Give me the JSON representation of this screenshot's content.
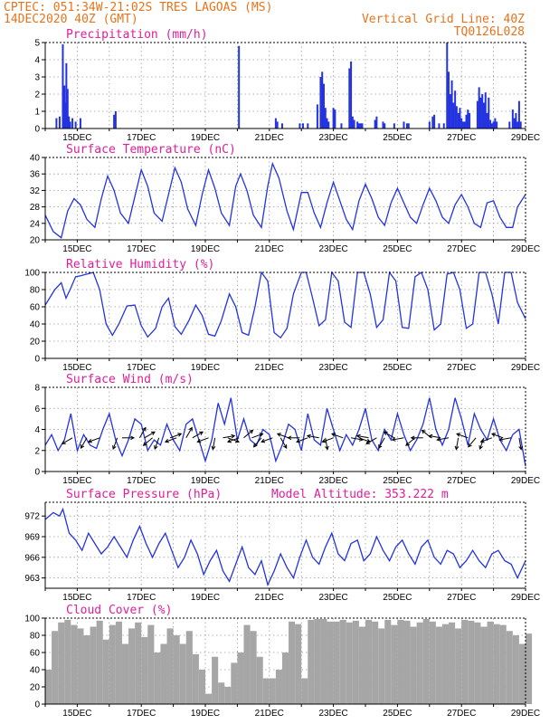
{
  "header": {
    "line1_left": "CPTEC:  051:34W-21:02S  TRES LAGOAS (MS)",
    "line2_left": "14DEC2020 40Z (GMT)",
    "line1_right": "Vertical Grid Line: 40Z",
    "line2_right": "TQ0126L028"
  },
  "x_axis": {
    "start_day": 14,
    "end_day": 29,
    "tick_labels": [
      "15DEC",
      "17DEC",
      "19DEC",
      "21DEC",
      "23DEC",
      "25DEC",
      "27DEC",
      "29DEC"
    ],
    "tick_days": [
      15,
      17,
      19,
      21,
      23,
      25,
      27,
      29
    ]
  },
  "colors": {
    "line": "#2433e0",
    "bar": "#2433e0",
    "cloud": "#a6a6a6",
    "arrow": "#000000",
    "header": "#e8731a",
    "title": "#e01e9a"
  },
  "chart_data": [
    {
      "type": "bar",
      "title": "Precipitation (mm/h)",
      "ylim": [
        0,
        5
      ],
      "yticks": [
        0,
        1,
        2,
        3,
        4,
        5
      ],
      "x": [
        14.35,
        14.45,
        14.55,
        14.6,
        14.62,
        14.66,
        14.7,
        14.74,
        14.78,
        14.85,
        14.95,
        15.1,
        16.15,
        16.2,
        20.05,
        21.2,
        21.25,
        21.4,
        21.95,
        22.05,
        22.2,
        22.5,
        22.6,
        22.65,
        22.7,
        22.75,
        22.8,
        22.85,
        23.0,
        23.05,
        23.25,
        23.5,
        23.55,
        23.6,
        23.65,
        23.75,
        23.8,
        23.85,
        23.9,
        24.3,
        24.35,
        24.55,
        24.6,
        24.9,
        25.2,
        25.3,
        25.35,
        26.0,
        26.1,
        26.15,
        26.3,
        26.45,
        26.55,
        26.6,
        26.65,
        26.7,
        26.75,
        26.8,
        26.85,
        26.9,
        26.95,
        27.0,
        27.05,
        27.1,
        27.15,
        27.2,
        27.25,
        27.5,
        27.55,
        27.6,
        27.65,
        27.7,
        27.75,
        27.8,
        27.85,
        27.9,
        27.95,
        28.0,
        28.05,
        28.1,
        28.5,
        28.6,
        28.65,
        28.7,
        28.75,
        28.8,
        28.85
      ],
      "values": [
        0.6,
        0.7,
        4.9,
        2.5,
        1.5,
        3.8,
        2.3,
        0.7,
        0.4,
        0.6,
        0.4,
        0.6,
        0.8,
        1.0,
        4.8,
        0.6,
        0.4,
        0.3,
        0.3,
        0.3,
        0.3,
        1.4,
        3.0,
        3.3,
        2.6,
        1.2,
        0.6,
        0.4,
        1.2,
        1.1,
        0.3,
        3.5,
        3.9,
        0.7,
        0.5,
        0.4,
        0.3,
        0.3,
        0.3,
        0.5,
        0.7,
        0.4,
        0.3,
        0.3,
        0.4,
        0.3,
        0.3,
        0.4,
        0.7,
        0.8,
        0.3,
        0.3,
        5.0,
        3.3,
        2.0,
        2.8,
        1.5,
        2.2,
        1.3,
        0.9,
        1.2,
        0.6,
        0.4,
        0.4,
        0.8,
        1.1,
        0.9,
        1.6,
        2.4,
        1.8,
        2.0,
        1.5,
        2.1,
        0.9,
        1.8,
        0.5,
        0.3,
        0.4,
        0.6,
        0.4,
        0.4,
        1.1,
        0.6,
        0.9,
        0.4,
        1.6,
        0.4
      ]
    },
    {
      "type": "line",
      "title": "Surface Temperature (nC)",
      "ylim": [
        20,
        40
      ],
      "yticks": [
        20,
        24,
        28,
        32,
        36,
        40
      ],
      "x": [
        14.0,
        14.25,
        14.5,
        14.7,
        14.9,
        15.1,
        15.3,
        15.55,
        15.75,
        15.95,
        16.15,
        16.35,
        16.6,
        16.8,
        17.0,
        17.2,
        17.4,
        17.65,
        17.85,
        18.05,
        18.25,
        18.45,
        18.7,
        18.9,
        19.1,
        19.3,
        19.5,
        19.75,
        19.95,
        20.1,
        20.3,
        20.5,
        20.75,
        20.95,
        21.1,
        21.3,
        21.55,
        21.75,
        22.0,
        22.2,
        22.4,
        22.6,
        22.8,
        23.0,
        23.2,
        23.4,
        23.6,
        23.8,
        24.0,
        24.2,
        24.4,
        24.6,
        24.8,
        25.0,
        25.2,
        25.4,
        25.6,
        25.8,
        26.0,
        26.2,
        26.4,
        26.6,
        26.8,
        27.0,
        27.2,
        27.4,
        27.6,
        27.8,
        28.0,
        28.2,
        28.4,
        28.6,
        28.75,
        29.0
      ],
      "values": [
        26.0,
        22.0,
        20.5,
        27.0,
        30.0,
        28.5,
        25.0,
        23.0,
        30.0,
        35.5,
        32.0,
        26.5,
        24.0,
        30.5,
        37.0,
        33.0,
        26.5,
        24.5,
        31.0,
        37.5,
        34.0,
        27.5,
        23.5,
        31.0,
        37.0,
        32.5,
        26.5,
        23.5,
        33.0,
        36.0,
        32.0,
        26.0,
        23.0,
        33.0,
        38.5,
        35.0,
        27.0,
        22.5,
        31.5,
        31.5,
        26.5,
        23.0,
        29.0,
        34.0,
        29.5,
        25.0,
        22.5,
        29.5,
        33.5,
        30.0,
        25.5,
        23.5,
        29.0,
        32.5,
        29.0,
        25.5,
        24.0,
        28.5,
        32.5,
        29.5,
        25.5,
        24.0,
        28.5,
        31.0,
        28.0,
        24.0,
        23.0,
        29.0,
        29.5,
        25.5,
        23.0,
        23.0,
        28.0,
        31.0
      ]
    },
    {
      "type": "line",
      "title": "Relative Humidity (%)",
      "ylim": [
        0,
        100
      ],
      "yticks": [
        0,
        20,
        40,
        60,
        80,
        100
      ],
      "x": [
        14.0,
        14.3,
        14.5,
        14.65,
        14.8,
        14.95,
        15.1,
        15.3,
        15.5,
        15.7,
        15.9,
        16.1,
        16.3,
        16.55,
        16.8,
        17.0,
        17.2,
        17.45,
        17.65,
        17.85,
        18.05,
        18.25,
        18.5,
        18.7,
        18.9,
        19.1,
        19.3,
        19.5,
        19.75,
        19.95,
        20.15,
        20.35,
        20.55,
        20.75,
        20.95,
        21.15,
        21.35,
        21.55,
        21.75,
        22.0,
        22.15,
        22.35,
        22.55,
        22.75,
        22.95,
        23.15,
        23.35,
        23.55,
        23.75,
        23.95,
        24.15,
        24.35,
        24.55,
        24.75,
        24.95,
        25.15,
        25.35,
        25.55,
        25.75,
        25.95,
        26.15,
        26.35,
        26.55,
        26.75,
        26.95,
        27.15,
        27.35,
        27.55,
        27.75,
        27.95,
        28.15,
        28.35,
        28.55,
        28.75,
        29.0
      ],
      "values": [
        62,
        80,
        88,
        70,
        82,
        95,
        96,
        98,
        100,
        80,
        40,
        27,
        40,
        61,
        62,
        38,
        25,
        35,
        60,
        70,
        37,
        28,
        45,
        62,
        50,
        28,
        26,
        44,
        75,
        60,
        30,
        27,
        60,
        100,
        90,
        30,
        24,
        35,
        75,
        100,
        100,
        70,
        38,
        45,
        100,
        90,
        42,
        36,
        100,
        100,
        75,
        36,
        45,
        100,
        90,
        36,
        35,
        95,
        100,
        80,
        33,
        40,
        98,
        100,
        80,
        35,
        40,
        100,
        100,
        75,
        40,
        100,
        100,
        65,
        46
      ]
    },
    {
      "type": "line",
      "title": "Surface Wind (m/s)",
      "ylim": [
        0,
        8
      ],
      "yticks": [
        0,
        2,
        4,
        6,
        8
      ],
      "x": [
        14.0,
        14.2,
        14.4,
        14.6,
        14.8,
        15.0,
        15.2,
        15.4,
        15.6,
        15.8,
        16.0,
        16.2,
        16.4,
        16.6,
        16.8,
        17.0,
        17.2,
        17.4,
        17.6,
        17.8,
        18.0,
        18.2,
        18.4,
        18.6,
        18.8,
        19.0,
        19.2,
        19.4,
        19.6,
        19.8,
        20.0,
        20.2,
        20.4,
        20.6,
        20.8,
        21.0,
        21.2,
        21.4,
        21.6,
        21.8,
        22.0,
        22.2,
        22.4,
        22.6,
        22.8,
        23.0,
        23.2,
        23.4,
        23.6,
        23.8,
        24.0,
        24.2,
        24.4,
        24.6,
        24.8,
        25.0,
        25.2,
        25.4,
        25.6,
        25.8,
        26.0,
        26.2,
        26.4,
        26.6,
        26.8,
        27.0,
        27.2,
        27.4,
        27.6,
        27.8,
        28.0,
        28.2,
        28.4,
        28.6,
        28.8,
        29.0
      ],
      "values": [
        2.5,
        3.5,
        2.0,
        3.0,
        5.5,
        2.0,
        3.5,
        2.5,
        2.2,
        4.0,
        5.5,
        3.0,
        1.5,
        3.0,
        5.0,
        4.5,
        2.0,
        3.0,
        2.5,
        4.5,
        3.0,
        2.0,
        4.5,
        5.0,
        3.0,
        1.0,
        3.0,
        6.5,
        4.5,
        7.0,
        3.0,
        5.0,
        3.0,
        2.5,
        4.0,
        3.5,
        1.0,
        2.5,
        4.5,
        4.0,
        2.0,
        5.5,
        3.0,
        2.5,
        6.0,
        4.0,
        2.0,
        3.5,
        2.5,
        4.0,
        6.0,
        3.0,
        2.0,
        4.0,
        3.0,
        5.5,
        3.5,
        2.0,
        3.0,
        4.5,
        7.0,
        4.0,
        2.5,
        4.0,
        7.0,
        5.0,
        2.5,
        5.5,
        4.0,
        3.0,
        5.0,
        3.0,
        2.0,
        3.5,
        4.0,
        0.5
      ]
    },
    {
      "type": "line",
      "title": "Surface Pressure (hPa)",
      "annotation": "Model Altitude: 353.222 m",
      "ylim": [
        961.5,
        974
      ],
      "yticks": [
        963,
        966,
        969,
        972
      ],
      "x": [
        14.0,
        14.25,
        14.45,
        14.55,
        14.75,
        14.95,
        15.15,
        15.35,
        15.55,
        15.75,
        15.95,
        16.15,
        16.35,
        16.55,
        16.75,
        16.95,
        17.15,
        17.35,
        17.55,
        17.75,
        17.95,
        18.15,
        18.35,
        18.55,
        18.75,
        18.95,
        19.15,
        19.35,
        19.55,
        19.75,
        19.95,
        20.15,
        20.35,
        20.55,
        20.75,
        20.95,
        21.15,
        21.35,
        21.55,
        21.75,
        21.95,
        22.15,
        22.35,
        22.55,
        22.75,
        22.95,
        23.15,
        23.35,
        23.55,
        23.75,
        23.95,
        24.15,
        24.35,
        24.55,
        24.75,
        24.95,
        25.15,
        25.35,
        25.55,
        25.75,
        25.95,
        26.15,
        26.35,
        26.55,
        26.75,
        26.95,
        27.15,
        27.35,
        27.55,
        27.75,
        27.95,
        28.15,
        28.35,
        28.55,
        28.75,
        29.0
      ],
      "values": [
        971.5,
        972.5,
        972.0,
        973.0,
        969.5,
        968.5,
        967.0,
        969.5,
        968.0,
        966.5,
        967.5,
        969.0,
        967.5,
        966.0,
        968.5,
        970.5,
        968.0,
        966.0,
        968.0,
        969.5,
        967.0,
        964.5,
        966.0,
        968.5,
        966.5,
        963.5,
        965.5,
        967.0,
        964.0,
        962.5,
        965.0,
        967.5,
        964.5,
        963.5,
        965.5,
        962.0,
        964.0,
        966.5,
        964.5,
        963.0,
        966.0,
        968.5,
        966.0,
        965.0,
        967.5,
        969.5,
        966.5,
        965.5,
        968.0,
        968.5,
        965.5,
        966.5,
        969.0,
        967.0,
        965.5,
        967.5,
        968.5,
        966.5,
        965.0,
        967.5,
        968.5,
        966.0,
        965.0,
        967.0,
        966.5,
        964.5,
        965.5,
        967.0,
        965.5,
        964.5,
        966.5,
        967.0,
        965.5,
        965.0,
        963.0,
        965.5
      ]
    },
    {
      "type": "bar",
      "title": "Cloud Cover (%)",
      "ylim": [
        0,
        100
      ],
      "yticks": [
        0,
        20,
        40,
        60,
        80,
        100
      ],
      "x": [
        14.0,
        14.2,
        14.4,
        14.6,
        14.8,
        15.0,
        15.2,
        15.4,
        15.6,
        15.8,
        16.0,
        16.2,
        16.4,
        16.6,
        16.8,
        17.0,
        17.2,
        17.4,
        17.6,
        17.8,
        18.0,
        18.2,
        18.4,
        18.6,
        18.8,
        19.0,
        19.2,
        19.4,
        19.6,
        19.8,
        20.0,
        20.2,
        20.4,
        20.6,
        20.8,
        21.0,
        21.2,
        21.4,
        21.6,
        21.8,
        22.0,
        22.2,
        22.4,
        22.6,
        22.8,
        23.0,
        23.2,
        23.4,
        23.6,
        23.8,
        24.0,
        24.2,
        24.4,
        24.6,
        24.8,
        25.0,
        25.2,
        25.4,
        25.6,
        25.8,
        26.0,
        26.2,
        26.4,
        26.6,
        26.8,
        27.0,
        27.2,
        27.4,
        27.6,
        27.8,
        28.0,
        28.2,
        28.4,
        28.6,
        28.8,
        29.0
      ],
      "values": [
        40,
        85,
        95,
        98,
        92,
        88,
        80,
        90,
        97,
        75,
        92,
        96,
        70,
        88,
        95,
        78,
        92,
        60,
        70,
        88,
        80,
        70,
        85,
        58,
        40,
        12,
        55,
        25,
        20,
        48,
        60,
        92,
        85,
        55,
        30,
        30,
        40,
        60,
        96,
        93,
        30,
        98,
        99,
        99,
        96,
        96,
        98,
        95,
        97,
        90,
        98,
        96,
        88,
        98,
        92,
        98,
        97,
        90,
        95,
        99,
        96,
        90,
        93,
        95,
        88,
        98,
        97,
        95,
        90,
        96,
        93,
        92,
        85,
        80,
        70,
        82
      ]
    }
  ],
  "wind_arrows": {
    "x": [
      14.85,
      15.3,
      15.7,
      16.25,
      16.4,
      16.95,
      17.1,
      17.35,
      17.55,
      17.9,
      18.1,
      18.4,
      18.6,
      19.1,
      19.3,
      19.55,
      19.7,
      20.05,
      20.2,
      20.45,
      20.75,
      21.1,
      21.35,
      21.6,
      21.95,
      22.2,
      22.55,
      22.75,
      23.0,
      23.3,
      23.55,
      23.8,
      24.1,
      24.35,
      24.6,
      24.9,
      25.2,
      25.55,
      25.8,
      26.05,
      26.35,
      26.6,
      26.9,
      27.2,
      27.45,
      27.7,
      27.95,
      28.3,
      28.55,
      28.8
    ],
    "angles_deg": [
      210,
      240,
      200,
      250,
      0,
      60,
      30,
      220,
      250,
      20,
      200,
      60,
      30,
      200,
      260,
      10,
      340,
      200,
      40,
      20,
      230,
      200,
      300,
      160,
      180,
      200,
      170,
      280,
      200,
      160,
      350,
      340,
      170,
      210,
      240,
      150,
      190,
      220,
      180,
      140,
      170,
      190,
      260,
      160,
      230,
      250,
      200,
      160,
      190,
      280
    ]
  }
}
